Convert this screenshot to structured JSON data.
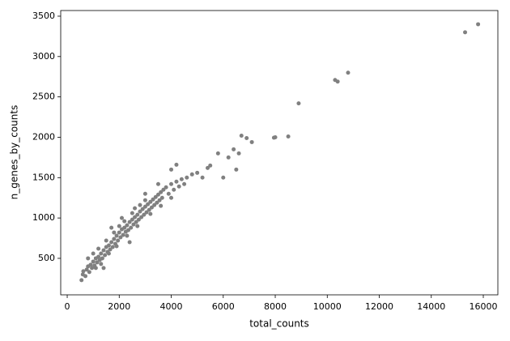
{
  "chart_data": {
    "type": "scatter",
    "xlabel": "total_counts",
    "ylabel": "n_genes_by_counts",
    "color": "#808080",
    "x": [
      550,
      600,
      620,
      700,
      750,
      800,
      850,
      900,
      950,
      1000,
      1050,
      1100,
      1150,
      1200,
      1250,
      1300,
      1350,
      1400,
      1450,
      1500,
      1550,
      1600,
      1650,
      1700,
      1750,
      1800,
      1850,
      1900,
      1950,
      2000,
      2050,
      2100,
      2150,
      2200,
      2250,
      2300,
      2350,
      2400,
      2450,
      2500,
      2550,
      2600,
      2650,
      2700,
      2750,
      2800,
      2850,
      2900,
      2950,
      3000,
      3050,
      3100,
      3150,
      3200,
      3250,
      3300,
      3350,
      3400,
      3450,
      3500,
      3550,
      3600,
      3650,
      3700,
      3800,
      3900,
      4000,
      4100,
      4200,
      4300,
      4400,
      4500,
      4600,
      4800,
      5000,
      5200,
      5400,
      1000,
      1200,
      1500,
      1800,
      2000,
      2200,
      2500,
      2800,
      3000,
      1300,
      1600,
      1900,
      2300,
      2700,
      3200,
      3600,
      4000,
      2100,
      1700,
      2600,
      3000,
      3500,
      4200,
      4000,
      5500,
      6000,
      5800,
      6200,
      6400,
      6600,
      6500,
      6700,
      6900,
      7100,
      7950,
      8000,
      8500,
      8900,
      10300,
      10400,
      10800,
      15300,
      15800,
      2400,
      1400,
      1100,
      800
    ],
    "values": [
      230,
      300,
      340,
      280,
      360,
      400,
      330,
      420,
      380,
      460,
      410,
      500,
      450,
      520,
      480,
      560,
      500,
      600,
      540,
      640,
      580,
      660,
      610,
      700,
      640,
      740,
      680,
      780,
      720,
      820,
      760,
      860,
      790,
      880,
      830,
      910,
      850,
      950,
      880,
      980,
      920,
      1010,
      950,
      1040,
      980,
      1080,
      1010,
      1110,
      1040,
      1140,
      1070,
      1170,
      1100,
      1200,
      1130,
      1230,
      1160,
      1260,
      1190,
      1290,
      1220,
      1320,
      1250,
      1350,
      1380,
      1300,
      1420,
      1350,
      1450,
      1390,
      1480,
      1420,
      1500,
      1540,
      1560,
      1500,
      1620,
      560,
      620,
      720,
      820,
      900,
      960,
      1060,
      1160,
      1220,
      430,
      560,
      650,
      780,
      900,
      1050,
      1150,
      1250,
      1000,
      880,
      1120,
      1300,
      1420,
      1660,
      1600,
      1650,
      1500,
      1800,
      1750,
      1850,
      1800,
      1600,
      2020,
      1990,
      1940,
      1995,
      2000,
      2010,
      2420,
      2710,
      2690,
      2800,
      3300,
      3400,
      700,
      380,
      380,
      500
    ],
    "xlim": [
      -250,
      16560
    ],
    "ylim": [
      48,
      3570
    ],
    "xticks": [
      0,
      2000,
      4000,
      6000,
      8000,
      10000,
      12000,
      14000,
      16000
    ],
    "yticks": [
      500,
      1000,
      1500,
      2000,
      2500,
      3000,
      3500
    ],
    "grid": false
  }
}
